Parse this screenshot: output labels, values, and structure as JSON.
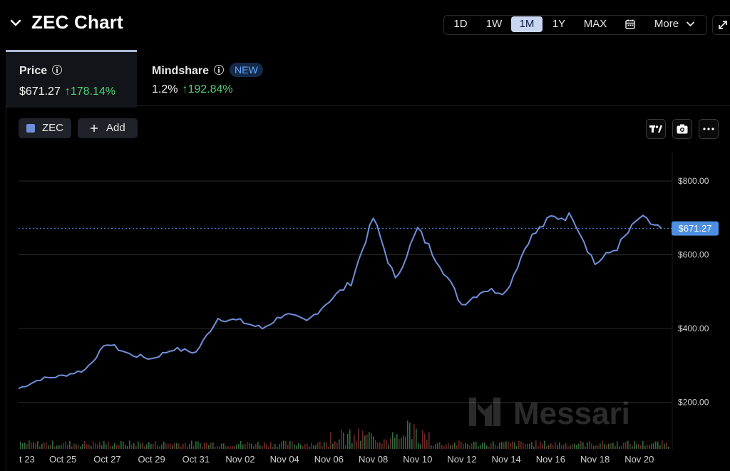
{
  "header": {
    "title": "ZEC Chart",
    "range_buttons": [
      "1D",
      "1W",
      "1M",
      "1Y",
      "MAX"
    ],
    "active_range": "1M",
    "more_label": "More"
  },
  "tabs": [
    {
      "label": "Price",
      "value": "$671.27",
      "change": "↑178.14%",
      "active": true
    },
    {
      "label": "Mindshare",
      "badge": "NEW",
      "value": "1.2%",
      "change": "↑192.84%",
      "active": false
    }
  ],
  "toolbar": {
    "series_chip": "ZEC",
    "add_label": "Add"
  },
  "watermark": "Messari",
  "colors": {
    "line": "#6f8fd9",
    "up": "#4fcf75",
    "down": "#e0584f",
    "accent": "#4d8fe0"
  },
  "chart_data": {
    "type": "line",
    "series": [
      {
        "name": "ZEC"
      }
    ],
    "x": [
      "Oct 23",
      "Oct 24",
      "Oct 25",
      "Oct 26",
      "Oct 27",
      "Oct 28",
      "Oct 29",
      "Oct 30",
      "Oct 31",
      "Nov 01",
      "Nov 02",
      "Nov 03",
      "Nov 04",
      "Nov 05",
      "Nov 06",
      "Nov 07",
      "Nov 08",
      "Nov 09",
      "Nov 10",
      "Nov 11",
      "Nov 12",
      "Nov 13",
      "Nov 14",
      "Nov 15",
      "Nov 16",
      "Nov 17",
      "Nov 18",
      "Nov 19",
      "Nov 20",
      "Nov 21"
    ],
    "y": [
      237,
      263,
      272,
      288,
      360,
      330,
      318,
      345,
      335,
      428,
      420,
      400,
      440,
      418,
      475,
      525,
      700,
      530,
      670,
      575,
      465,
      505,
      500,
      640,
      700,
      705,
      575,
      620,
      700,
      671.27
    ],
    "xticks": [
      "t 23",
      "Oct 25",
      "Oct 27",
      "Oct 29",
      "Oct 31",
      "Nov 02",
      "Nov 04",
      "Nov 06",
      "Nov 08",
      "Nov 10",
      "Nov 12",
      "Nov 14",
      "Nov 16",
      "Nov 18",
      "Nov 20"
    ],
    "yticks": [
      "$200.00",
      "$400.00",
      "$600.00",
      "$800.00"
    ],
    "ylim": [
      100,
      880
    ],
    "current_price_label": "$671.27",
    "grid": true,
    "volume_bars": true
  }
}
